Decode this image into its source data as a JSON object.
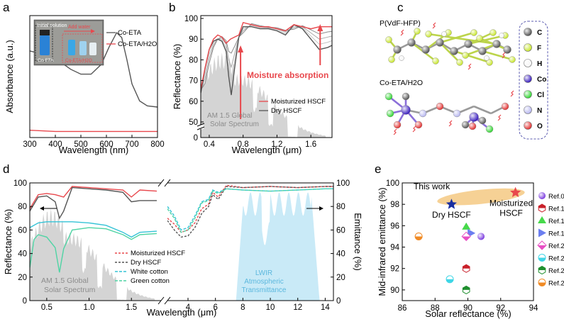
{
  "panels": {
    "a": "a",
    "b": "b",
    "c": "c",
    "d": "d",
    "e": "e"
  },
  "colors": {
    "red": "#e8484d",
    "black": "#555555",
    "cyan": "#35c3d6",
    "green": "#4fd4a4",
    "navy": "#1a2fa0",
    "band_orange": "#f5c983",
    "solar_gray": "#d4d4d4",
    "lwir_blue": "#bfe6f6"
  },
  "chart_data": [
    {
      "panel": "a",
      "type": "line",
      "xlabel": "Wavelength (nm)",
      "ylabel": "Absorbance (a.u.)",
      "xlim": [
        300,
        800
      ],
      "x_ticks": [
        300,
        400,
        500,
        600,
        700,
        800
      ],
      "legend_position": "top-right",
      "inset": {
        "label_initial": "Initial solution",
        "label_add": "Add water",
        "label_left": "Co-ETA",
        "label_right": "Co-ETA/H2O"
      },
      "series": [
        {
          "name": "Co-ETA",
          "color": "#555555",
          "x": [
            300,
            340,
            380,
            420,
            460,
            500,
            540,
            580,
            610,
            640,
            660,
            680,
            700,
            730,
            760,
            800
          ],
          "y": [
            0.71,
            0.69,
            0.66,
            0.62,
            0.56,
            0.52,
            0.52,
            0.6,
            0.74,
            0.86,
            0.82,
            0.64,
            0.44,
            0.3,
            0.26,
            0.25
          ]
        },
        {
          "name": "Co-ETA/H2O",
          "color": "#e8484d",
          "x": [
            300,
            400,
            500,
            600,
            700,
            800
          ],
          "y": [
            0.06,
            0.05,
            0.05,
            0.05,
            0.05,
            0.05
          ]
        }
      ]
    },
    {
      "panel": "b",
      "type": "line",
      "xlabel": "Wavelength (μm)",
      "ylabel": "Reflectance (%)",
      "xlim": [
        0.3,
        1.85
      ],
      "ylim": [
        0,
        100
      ],
      "x_ticks": [
        0.4,
        0.8,
        1.2,
        1.6
      ],
      "y_ticks": [
        0,
        50,
        60,
        70,
        80,
        90,
        100
      ],
      "axis_break": true,
      "annotation": "Moisture absorption",
      "solar_label_1": "AM 1.5 Global",
      "solar_label_2": "Solar Spectrum",
      "legend_position": "bottom-right",
      "series": [
        {
          "name": "Moisturized HSCF",
          "color": "#e8484d",
          "x": [
            0.3,
            0.35,
            0.4,
            0.45,
            0.5,
            0.55,
            0.6,
            0.65,
            0.7,
            0.75,
            0.8,
            0.9,
            1.0,
            1.1,
            1.2,
            1.3,
            1.4,
            1.5,
            1.6,
            1.7,
            1.8,
            1.85
          ],
          "y": [
            66,
            76,
            85,
            90,
            92,
            91,
            88,
            90,
            91,
            92,
            98,
            97,
            96,
            96,
            95,
            94,
            97,
            96,
            95,
            96,
            96,
            96
          ]
        },
        {
          "name": "Dry HSCF",
          "color": "#555555",
          "x": [
            0.3,
            0.35,
            0.4,
            0.45,
            0.5,
            0.55,
            0.6,
            0.63,
            0.66,
            0.7,
            0.75,
            0.8,
            0.9,
            1.0,
            1.1,
            1.2,
            1.3,
            1.4,
            1.5,
            1.6,
            1.7,
            1.8,
            1.85
          ],
          "y": [
            64,
            76,
            85,
            89,
            90,
            89,
            84,
            72,
            63,
            76,
            91,
            96,
            96,
            95,
            95,
            94,
            92,
            97,
            95,
            90,
            85,
            86,
            87
          ]
        }
      ]
    },
    {
      "panel": "d",
      "type": "line",
      "xlabel": "Wavelength (μm)",
      "ylabel": "Reflectance (%)",
      "ylabel_right": "Emittance (%)",
      "ylim": [
        0,
        100
      ],
      "x_ticks_left": [
        0.5,
        1.0,
        1.5
      ],
      "x_ticks_right": [
        4,
        6,
        8,
        10,
        12,
        14
      ],
      "y_ticks": [
        0,
        20,
        40,
        60,
        80,
        100
      ],
      "solar_label_1": "AM 1.5 Global",
      "solar_label_2": "Solar Spectrum",
      "lwir_label_1": "LWIR",
      "lwir_label_2": "Atmospheric",
      "lwir_label_3": "Transmittance",
      "legend_position": "bottom-center",
      "series": [
        {
          "name": "Moisturized HSCF",
          "color": "#e8484d",
          "x_vis": [
            0.3,
            0.4,
            0.5,
            0.6,
            0.7,
            0.8,
            1.0,
            1.2,
            1.4,
            1.5,
            1.6,
            1.8
          ],
          "y_vis": [
            78,
            90,
            91,
            90,
            88,
            97,
            96,
            95,
            94,
            88,
            94,
            93
          ],
          "x_ir": [
            2.5,
            3.0,
            3.5,
            4.0,
            4.5,
            5.0,
            5.5,
            5.8,
            6.2,
            6.8,
            8,
            10,
            12,
            14,
            15
          ],
          "y_ir": [
            70,
            65,
            58,
            60,
            66,
            78,
            82,
            92,
            88,
            98,
            96,
            97,
            96,
            97,
            97
          ]
        },
        {
          "name": "Dry HSCF",
          "color": "#555555",
          "x_vis": [
            0.3,
            0.4,
            0.5,
            0.6,
            0.65,
            0.7,
            0.8,
            1.0,
            1.2,
            1.4,
            1.5,
            1.6,
            1.8
          ],
          "y_vis": [
            76,
            88,
            89,
            84,
            70,
            76,
            96,
            95,
            94,
            92,
            84,
            85,
            85
          ],
          "x_ir": [
            2.5,
            3.0,
            3.5,
            4.0,
            4.5,
            5.0,
            5.5,
            5.8,
            6.2,
            6.8,
            8,
            10,
            12,
            14,
            15
          ],
          "y_ir": [
            68,
            60,
            54,
            55,
            62,
            74,
            80,
            90,
            86,
            97,
            96,
            97,
            96,
            97,
            97
          ]
        },
        {
          "name": "White cotton",
          "color": "#35c3d6",
          "x_vis": [
            0.3,
            0.4,
            0.5,
            0.6,
            0.8,
            1.0,
            1.2,
            1.4,
            1.5,
            1.6,
            1.8
          ],
          "y_vis": [
            62,
            66,
            67,
            67,
            67,
            66,
            64,
            58,
            54,
            58,
            59
          ],
          "x_ir": [
            2.5,
            3.0,
            3.5,
            4.0,
            4.5,
            5.0,
            5.5,
            5.8,
            6.2,
            6.8,
            8,
            10,
            12,
            14,
            15
          ],
          "y_ir": [
            80,
            72,
            60,
            62,
            72,
            84,
            86,
            94,
            92,
            95,
            94,
            93,
            94,
            95,
            95
          ]
        },
        {
          "name": "Green cotton",
          "color": "#4fd4a4",
          "x_vis": [
            0.3,
            0.35,
            0.4,
            0.5,
            0.6,
            0.65,
            0.7,
            0.8,
            1.0,
            1.2,
            1.4,
            1.5,
            1.6,
            1.8
          ],
          "y_vis": [
            28,
            52,
            56,
            54,
            45,
            24,
            44,
            60,
            62,
            61,
            56,
            52,
            56,
            57
          ],
          "x_ir": [
            2.5,
            3.0,
            3.5,
            4.0,
            4.5,
            5.0,
            5.5,
            5.8,
            6.2,
            6.8,
            8,
            10,
            12,
            14,
            15
          ],
          "y_ir": [
            78,
            70,
            58,
            60,
            70,
            83,
            85,
            93,
            91,
            95,
            94,
            93,
            94,
            95,
            95
          ]
        }
      ]
    },
    {
      "panel": "e",
      "type": "scatter",
      "xlabel": "Solar reflectance (%)",
      "ylabel": "Mid-infrared emittance (%)",
      "xlim": [
        86,
        94
      ],
      "ylim": [
        89,
        100
      ],
      "x_ticks": [
        86,
        88,
        90,
        92,
        94
      ],
      "y_ticks": [
        90,
        92,
        94,
        96,
        98,
        100
      ],
      "this_work": "This work",
      "points": [
        {
          "name": "Dry HSCF",
          "label_1": "Dry HSCF",
          "x": 89.0,
          "y": 98.0,
          "color": "#1a2fa0",
          "marker": "star"
        },
        {
          "name": "Moisturized HSCF",
          "label_1": "Moisturized",
          "label_2": "HSCF",
          "x": 92.9,
          "y": 99.1,
          "color": "#e8484d",
          "marker": "star"
        },
        {
          "name": "Ref.09",
          "x": 90.8,
          "y": 95.0,
          "color": "#7e3fe0",
          "marker": "sphere"
        },
        {
          "name": "Ref.16",
          "x": 89.9,
          "y": 92.0,
          "color": "#c9202a",
          "marker": "hexhalf"
        },
        {
          "name": "Ref.17",
          "x": 89.9,
          "y": 95.9,
          "color": "#46d94a",
          "marker": "triangle"
        },
        {
          "name": "Ref.19",
          "x": 90.2,
          "y": 95.3,
          "color": "#6b7ef0",
          "marker": "tri-right"
        },
        {
          "name": "Ref.20",
          "x": 89.9,
          "y": 95.0,
          "color": "#e84fc4",
          "marker": "diamond"
        },
        {
          "name": "Ref.21",
          "x": 88.9,
          "y": 91.0,
          "color": "#3fd6e6",
          "marker": "halfcircle"
        },
        {
          "name": "Ref.23",
          "x": 89.9,
          "y": 90.0,
          "color": "#1f8f2e",
          "marker": "hexhalf"
        },
        {
          "name": "Ref.24",
          "x": 87.0,
          "y": 95.0,
          "color": "#f08a24",
          "marker": "halfcircle"
        }
      ]
    }
  ],
  "panel_c": {
    "title_top": "P(VdF-HFP)",
    "title_bottom": "Co-ETA/H2O",
    "legend": [
      {
        "label": "C",
        "color": "#555555"
      },
      {
        "label": "F",
        "color": "#c8e62e"
      },
      {
        "label": "H",
        "color": "#f4f4f4"
      },
      {
        "label": "Co",
        "color": "#3b1fbf"
      },
      {
        "label": "Cl",
        "color": "#34d634"
      },
      {
        "label": "N",
        "color": "#b8b8f0"
      },
      {
        "label": "O",
        "color": "#e33131"
      }
    ]
  }
}
